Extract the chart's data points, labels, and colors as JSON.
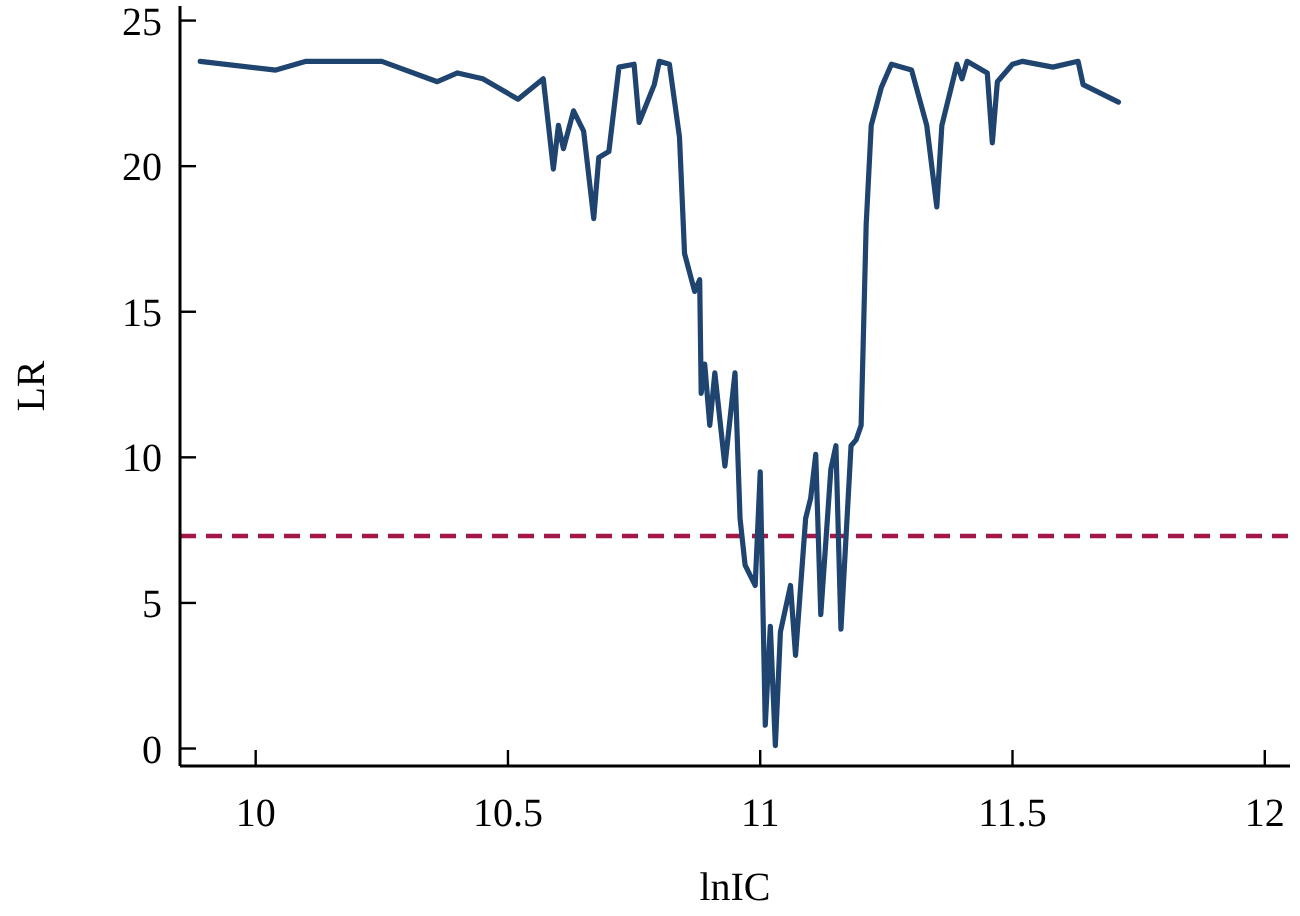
{
  "chart_data": {
    "type": "line",
    "xlabel": "lnIC",
    "ylabel": "LR",
    "x": [
      9.89,
      10.04,
      10.1,
      10.25,
      10.36,
      10.4,
      10.45,
      10.52,
      10.57,
      10.59,
      10.6,
      10.61,
      10.63,
      10.65,
      10.67,
      10.68,
      10.7,
      10.72,
      10.75,
      10.76,
      10.79,
      10.8,
      10.82,
      10.84,
      10.85,
      10.87,
      10.88,
      10.883,
      10.89,
      10.9,
      10.91,
      10.93,
      10.95,
      10.96,
      10.97,
      10.99,
      11.0,
      11.01,
      11.02,
      11.03,
      11.04,
      11.06,
      11.07,
      11.09,
      11.1,
      11.11,
      11.12,
      11.14,
      11.15,
      11.16,
      11.18,
      11.19,
      11.2,
      11.21,
      11.22,
      11.24,
      11.26,
      11.3,
      11.33,
      11.35,
      11.36,
      11.39,
      11.4,
      11.41,
      11.45,
      11.46,
      11.47,
      11.5,
      11.52,
      11.58,
      11.63,
      11.64,
      11.71
    ],
    "series": [
      {
        "color": "#1f4470",
        "values": [
          23.6,
          23.3,
          23.6,
          23.6,
          22.9,
          23.2,
          23.0,
          22.3,
          23.0,
          19.9,
          21.4,
          20.6,
          21.9,
          21.2,
          18.2,
          20.3,
          20.5,
          23.4,
          23.5,
          21.5,
          22.8,
          23.6,
          23.5,
          21.0,
          17.0,
          15.7,
          16.1,
          12.2,
          13.2,
          11.1,
          12.9,
          9.7,
          12.9,
          7.9,
          6.3,
          5.6,
          9.5,
          0.8,
          4.2,
          0.1,
          4.0,
          5.6,
          3.2,
          7.9,
          8.6,
          10.1,
          4.6,
          9.6,
          10.4,
          4.1,
          10.4,
          10.6,
          11.1,
          18.0,
          21.4,
          22.7,
          23.5,
          23.3,
          21.4,
          18.6,
          21.4,
          23.5,
          23.0,
          23.6,
          23.2,
          20.8,
          22.9,
          23.5,
          23.6,
          23.4,
          23.6,
          22.8,
          22.2
        ]
      }
    ],
    "xlim": [
      9.85,
      12.05
    ],
    "ylim": [
      -0.6,
      25.5
    ],
    "xticks": [
      10,
      10.5,
      11,
      11.5,
      12
    ],
    "yticks": [
      0,
      5,
      10,
      15,
      20,
      25
    ],
    "ref_lines": [
      {
        "axis": "y",
        "value": 7.3,
        "color": "#a3164a",
        "line_style": "dashed"
      }
    ],
    "grid": false,
    "line_style": "solid",
    "marker": "none"
  }
}
